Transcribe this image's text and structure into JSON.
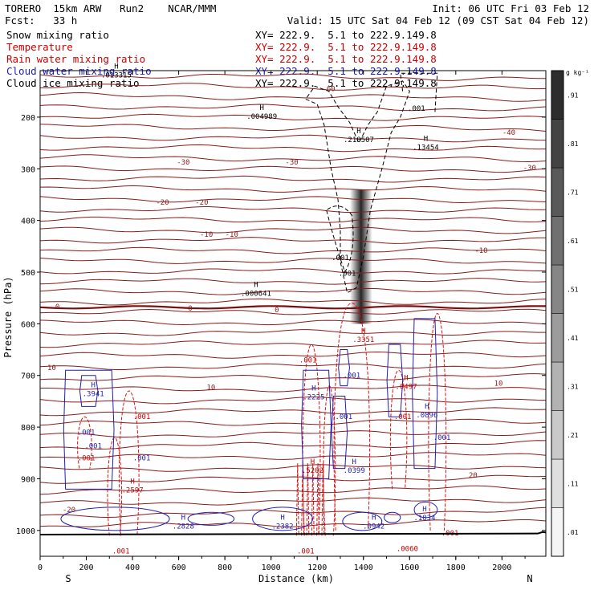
{
  "header": {
    "line1_left": "TORERO  15km ARW   Run2    NCAR/MMM",
    "line1_right": "Init: 06 UTC Fri 03 Feb 12",
    "line2_left": "Fcst:   33 h",
    "line2_right": "Valid: 15 UTC Sat 04 Feb 12 (09 CST Sat 04 Feb 12)"
  },
  "fields": [
    {
      "name": "Snow mixing ratio",
      "xy": "XY= 222.9.  5.1 to 222.9.149.8",
      "color": "#000000"
    },
    {
      "name": "Temperature",
      "xy": "XY= 222.9.  5.1 to 222.9.149.8",
      "color": "#cc0000"
    },
    {
      "name": "Rain water mixing ratio",
      "xy": "XY= 222.9.  5.1 to 222.9.149.8",
      "color": "#cc0000"
    },
    {
      "name": "Cloud water mixing ratio",
      "xy": "XY= 222.9.  5.1 to 222.9.149.8",
      "color": "#1f1fb4"
    },
    {
      "name": "Cloud ice mixing ratio",
      "xy": "XY= 222.9.  5.1 to 222.9.149.8",
      "color": "#000000"
    }
  ],
  "chart_data": {
    "type": "contour cross-section",
    "xlabel": "Distance (km)",
    "ylabel": "Pressure (hPa)",
    "xlim": [
      0,
      2190
    ],
    "ylim": [
      1050,
      110
    ],
    "xticks": [
      0,
      200,
      400,
      600,
      800,
      1000,
      1200,
      1400,
      1600,
      1800,
      2000
    ],
    "yticks": [
      200,
      300,
      400,
      500,
      600,
      700,
      800,
      900,
      1000
    ],
    "end_labels": {
      "left": "S",
      "right": "N"
    },
    "colorbar": {
      "unit": "g kg⁻¹",
      "levels": [
        ".01",
        ".11",
        ".21",
        ".31",
        ".41",
        ".51",
        ".61",
        ".71",
        ".81",
        ".91"
      ]
    },
    "shading_column": {
      "center_km": 1390,
      "top_hPa": 340,
      "bottom_hPa": 600
    },
    "temperature_labels": [
      {
        "text": "-60",
        "x": 1250,
        "p": 145
      },
      {
        "text": "-40",
        "x": 2030,
        "p": 230
      },
      {
        "text": "-30",
        "x": 620,
        "p": 287
      },
      {
        "text": "-30",
        "x": 1090,
        "p": 287
      },
      {
        "text": "-30",
        "x": 2120,
        "p": 298
      },
      {
        "text": "-20",
        "x": 530,
        "p": 365
      },
      {
        "text": "-20",
        "x": 700,
        "p": 365
      },
      {
        "text": "-10",
        "x": 720,
        "p": 427
      },
      {
        "text": "-10",
        "x": 830,
        "p": 427
      },
      {
        "text": "-10",
        "x": 1910,
        "p": 458
      },
      {
        "text": "0",
        "x": 75,
        "p": 567
      },
      {
        "text": "0",
        "x": 650,
        "p": 570
      },
      {
        "text": "0",
        "x": 1025,
        "p": 573
      },
      {
        "text": "10",
        "x": 50,
        "p": 685
      },
      {
        "text": "10",
        "x": 740,
        "p": 723
      },
      {
        "text": "10",
        "x": 1985,
        "p": 715
      },
      {
        "text": "20",
        "x": 1875,
        "p": 893
      },
      {
        "text": "-20",
        "x": 125,
        "p": 960
      }
    ],
    "max_labels": [
      {
        "h": "H",
        "value": ".013315",
        "x": 330,
        "p": 120,
        "color": "#000000"
      },
      {
        "h": "H",
        "value": ".004989",
        "x": 960,
        "p": 200,
        "color": "#000000"
      },
      {
        "h": "H",
        "value": ".218507",
        "x": 1380,
        "p": 245,
        "color": "#000000"
      },
      {
        "h": "H",
        "value": ".13454",
        "x": 1670,
        "p": 260,
        "color": "#000000"
      },
      {
        "h": "H",
        "value": ".000641",
        "x": 935,
        "p": 543,
        "color": "#000000"
      },
      {
        "h": "H",
        "value": ".3351",
        "x": 1400,
        "p": 632,
        "color": "#cc0000"
      },
      {
        "h": "H",
        "value": ".3941",
        "x": 230,
        "p": 737,
        "color": "#1f1fb4"
      },
      {
        "h": "H",
        "value": ".2225",
        "x": 1185,
        "p": 743,
        "color": "#1f1fb4"
      },
      {
        "h": "H",
        "value": ".0497",
        "x": 1585,
        "p": 723,
        "color": "#cc0000"
      },
      {
        "h": "H",
        "value": ".0896",
        "x": 1675,
        "p": 778,
        "color": "#1f1fb4"
      },
      {
        "h": "H",
        "value": ".5202",
        "x": 1180,
        "p": 885,
        "color": "#cc0000"
      },
      {
        "h": "H",
        "value": ".0399",
        "x": 1360,
        "p": 885,
        "color": "#1f1fb4"
      },
      {
        "h": "H",
        "value": ".2597",
        "x": 400,
        "p": 923,
        "color": "#cc0000"
      },
      {
        "h": "H",
        "value": ".2828",
        "x": 620,
        "p": 993,
        "color": "#1f1fb4"
      },
      {
        "h": "H",
        "value": ".2382",
        "x": 1050,
        "p": 993,
        "color": "#1f1fb4"
      },
      {
        "h": "H",
        "value": ".0942",
        "x": 1445,
        "p": 993,
        "color": "#1f1fb4"
      },
      {
        "h": "H",
        "value": ".1834",
        "x": 1665,
        "p": 977,
        "color": "#1f1fb4"
      }
    ],
    "min_value_labels": [
      {
        "text": ".001",
        "x": 1630,
        "p": 183,
        "color": "#000000"
      },
      {
        "text": ".001",
        "x": 1300,
        "p": 472,
        "color": "#000000"
      },
      {
        "text": ".001",
        "x": 1330,
        "p": 502,
        "color": "#000000"
      },
      {
        "text": ".001",
        "x": 1160,
        "p": 670,
        "color": "#cc0000"
      },
      {
        "text": ".001",
        "x": 1350,
        "p": 700,
        "color": "#1f1fb4"
      },
      {
        "text": ".001",
        "x": 1315,
        "p": 780,
        "color": "#1f1fb4"
      },
      {
        "text": ".001",
        "x": 1570,
        "p": 780,
        "color": "#cc0000"
      },
      {
        "text": ".001",
        "x": 1740,
        "p": 820,
        "color": "#1f1fb4"
      },
      {
        "text": ".001",
        "x": 200,
        "p": 810,
        "color": "#1f1fb4"
      },
      {
        "text": ".001",
        "x": 440,
        "p": 780,
        "color": "#cc0000"
      },
      {
        "text": ".001",
        "x": 230,
        "p": 836,
        "color": "#1f1fb4"
      },
      {
        "text": ".001",
        "x": 200,
        "p": 860,
        "color": "#cc0000"
      },
      {
        "text": ".001",
        "x": 440,
        "p": 860,
        "color": "#1f1fb4"
      },
      {
        "text": ".001",
        "x": 350,
        "p": 1040,
        "color": "#cc0000"
      },
      {
        "text": ".001",
        "x": 1150,
        "p": 1040,
        "color": "#cc0000"
      },
      {
        "text": ".0060",
        "x": 1590,
        "p": 1035,
        "color": "#cc0000"
      },
      {
        "text": ".001",
        "x": 1775,
        "p": 1005,
        "color": "#cc0000"
      }
    ]
  }
}
